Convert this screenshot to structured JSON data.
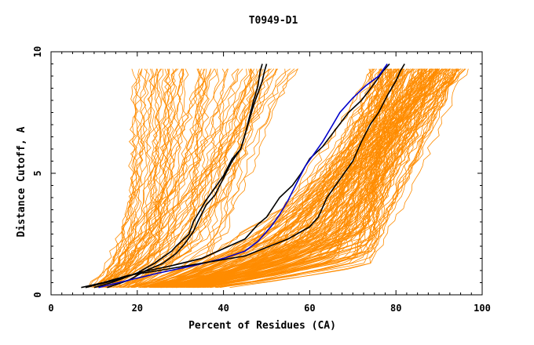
{
  "chart_data": {
    "type": "line",
    "title": "T0949-D1",
    "xlabel": "Percent of Residues (CA)",
    "ylabel": "Distance Cutoff, A",
    "xlim": [
      0,
      100
    ],
    "ylim": [
      0,
      10
    ],
    "x_ticks": [
      "0",
      "20",
      "40",
      "60",
      "80",
      "100"
    ],
    "y_ticks": [
      "0",
      "5",
      "10"
    ],
    "grid": false,
    "legend": "none",
    "colors": {
      "background_models": "#ff8c00",
      "highlighted": "#000000",
      "highlighted_blue": "#0000cc"
    },
    "series": [
      {
        "color": "#000000",
        "x": [
          10,
          14,
          20,
          24,
          28,
          29,
          32,
          33,
          35,
          36,
          38,
          40,
          42,
          44,
          45,
          46,
          47,
          48,
          48.5,
          49
        ],
        "y": [
          0.3,
          0.5,
          0.9,
          1.3,
          1.8,
          2.0,
          2.5,
          3.0,
          3.6,
          3.9,
          4.4,
          4.9,
          5.6,
          6.0,
          6.6,
          7.3,
          8.0,
          8.6,
          9.2,
          9.5
        ]
      },
      {
        "color": "#000000",
        "x": [
          13,
          18,
          22,
          26,
          29,
          31,
          33,
          34,
          36,
          38,
          40,
          42,
          44,
          45,
          46,
          47,
          48,
          49,
          49.5,
          50
        ],
        "y": [
          0.3,
          0.6,
          1.0,
          1.3,
          1.7,
          2.1,
          2.6,
          3.0,
          3.7,
          4.1,
          4.8,
          5.5,
          6.0,
          6.6,
          7.2,
          7.8,
          8.3,
          8.8,
          9.2,
          9.5
        ]
      },
      {
        "color": "#000000",
        "x": [
          8,
          15,
          20,
          28,
          35,
          40,
          45,
          48,
          50,
          53,
          56,
          58,
          60,
          63,
          66,
          69,
          72,
          75,
          77,
          78.5
        ],
        "y": [
          0.3,
          0.6,
          0.9,
          1.2,
          1.5,
          1.9,
          2.3,
          2.9,
          3.2,
          4.0,
          4.5,
          5.0,
          5.6,
          6.1,
          6.8,
          7.5,
          8.0,
          8.7,
          9.2,
          9.5
        ]
      },
      {
        "color": "#0000cc",
        "x": [
          11,
          18,
          25,
          33,
          40,
          45,
          48,
          51,
          53,
          55,
          57,
          59,
          61,
          63,
          65,
          67,
          70,
          73,
          76,
          78
        ],
        "y": [
          0.3,
          0.6,
          0.9,
          1.2,
          1.5,
          1.8,
          2.2,
          2.8,
          3.3,
          3.9,
          4.6,
          5.3,
          5.8,
          6.3,
          6.9,
          7.5,
          8.1,
          8.6,
          9.0,
          9.5
        ]
      },
      {
        "color": "#000000",
        "x": [
          7,
          12,
          18,
          25,
          35,
          45,
          55,
          58,
          60,
          62,
          64,
          66,
          68,
          70,
          72,
          74,
          76,
          78,
          80,
          81,
          82
        ],
        "y": [
          0.3,
          0.5,
          0.8,
          1.0,
          1.3,
          1.6,
          2.3,
          2.6,
          2.8,
          3.2,
          4.0,
          4.5,
          5.0,
          5.5,
          6.3,
          7.0,
          7.5,
          8.2,
          8.8,
          9.2,
          9.5
        ]
      }
    ]
  }
}
